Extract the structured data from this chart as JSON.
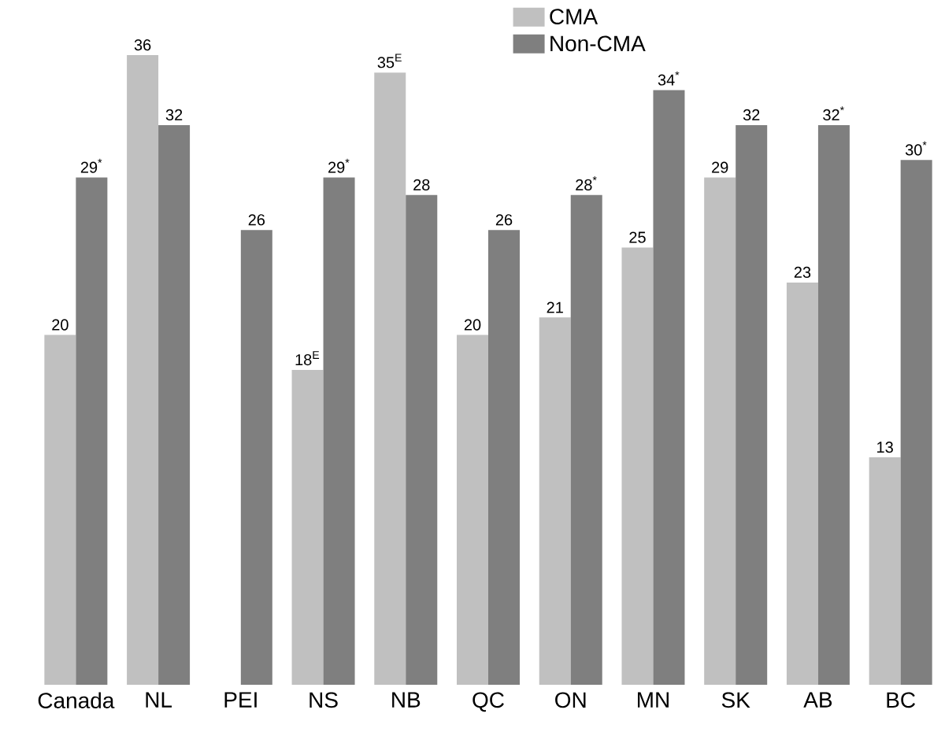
{
  "chart_data": {
    "type": "bar",
    "categories": [
      "Canada",
      "NL",
      "PEI",
      "NS",
      "NB",
      "QC",
      "ON",
      "MN",
      "SK",
      "AB",
      "BC"
    ],
    "series": [
      {
        "name": "CMA",
        "color": "#c0c0c0",
        "values": [
          20,
          36,
          null,
          18,
          35,
          20,
          21,
          25,
          29,
          23,
          13
        ],
        "value_labels": [
          "20",
          "36",
          null,
          "18$^{E}$",
          "35$^{E}$",
          "20",
          "21",
          "25",
          "29",
          "23",
          "13"
        ]
      },
      {
        "name": "Non-CMA",
        "color": "#7f7f7f",
        "values": [
          29,
          32,
          26,
          29,
          28,
          26,
          28,
          34,
          32,
          32,
          30
        ],
        "value_labels": [
          "29$^{*}$",
          "32",
          "26",
          "29$^{*}$",
          "28",
          "26",
          "28$^{*}$",
          "34$^{*}$",
          "32",
          "32$^{*}$",
          "30$^{*}$"
        ]
      }
    ],
    "legend": "top"
  }
}
